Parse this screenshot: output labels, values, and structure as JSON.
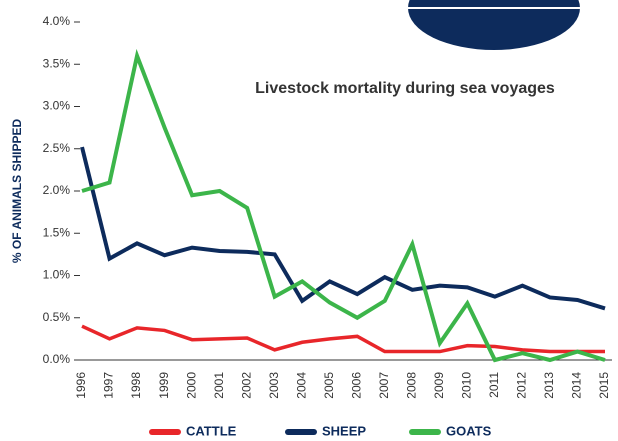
{
  "chart_data": {
    "type": "line",
    "title": "Livestock mortality during sea voyages",
    "y_label": "% OF ANIMALS SHIPPED",
    "categories": [
      "1996",
      "1997",
      "1998",
      "1999",
      "2000",
      "2001",
      "2002",
      "2003",
      "2004",
      "2005",
      "2006",
      "2007",
      "2008",
      "2009",
      "2010",
      "2011",
      "2012",
      "2013",
      "2014",
      "2015"
    ],
    "series": [
      {
        "name": "CATTLE",
        "color": "#e8262a",
        "values": [
          0.4,
          0.25,
          0.38,
          0.35,
          0.24,
          0.25,
          0.26,
          0.12,
          0.21,
          0.25,
          0.28,
          0.1,
          0.1,
          0.1,
          0.17,
          0.16,
          0.12,
          0.1,
          0.1,
          0.1
        ]
      },
      {
        "name": "SHEEP",
        "color": "#0d2b5c",
        "values": [
          2.52,
          1.2,
          1.38,
          1.24,
          1.33,
          1.29,
          1.28,
          1.25,
          0.7,
          0.93,
          0.78,
          0.98,
          0.83,
          0.88,
          0.86,
          0.75,
          0.88,
          0.74,
          0.71,
          0.61
        ]
      },
      {
        "name": "GOATS",
        "color": "#3cb54a",
        "values": [
          2.0,
          2.1,
          3.6,
          2.75,
          1.95,
          2.0,
          1.8,
          0.75,
          0.93,
          0.68,
          0.5,
          0.7,
          1.37,
          0.2,
          0.67,
          0.0,
          0.08,
          0.0,
          0.1,
          0.0
        ]
      }
    ],
    "ylim": [
      0,
      4
    ],
    "yticks": [
      {
        "value": 0,
        "label": "0.0%"
      },
      {
        "value": 0.5,
        "label": "0.5%"
      },
      {
        "value": 1,
        "label": "1.0%"
      },
      {
        "value": 1.5,
        "label": "1.5%"
      },
      {
        "value": 2,
        "label": "2.0%"
      },
      {
        "value": 2.5,
        "label": "2.5%"
      },
      {
        "value": 3,
        "label": "3.0%"
      },
      {
        "value": 3.5,
        "label": "3.5%"
      },
      {
        "value": 4,
        "label": "4.0%"
      }
    ],
    "legend": "bottom"
  }
}
